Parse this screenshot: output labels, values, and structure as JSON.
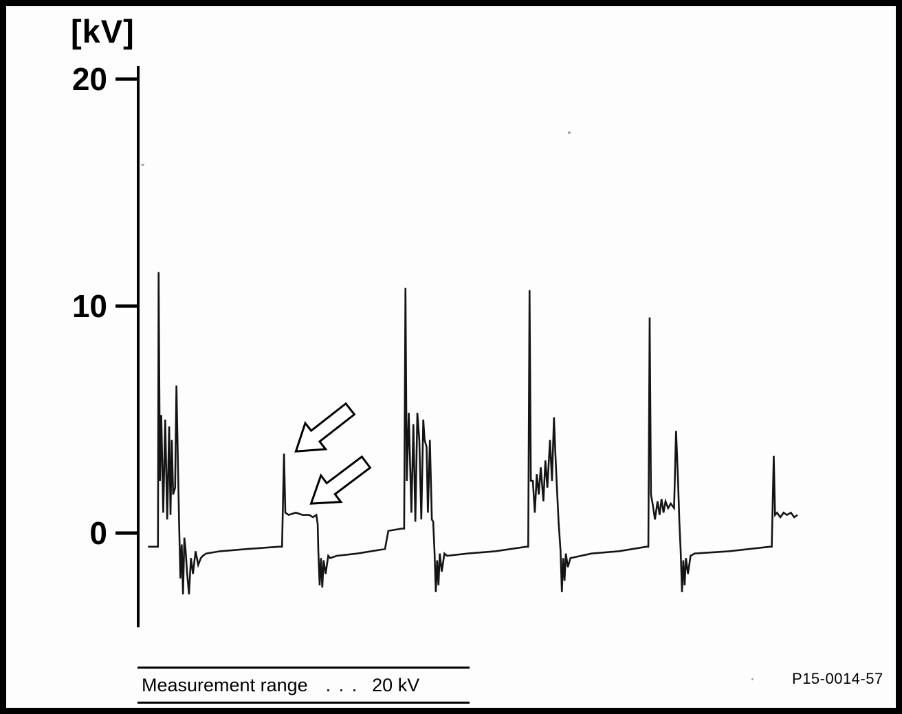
{
  "figure": {
    "unit_label": "[kV]",
    "caption": {
      "label": "Measurement range",
      "separator": ". . .",
      "value": "20 kV"
    },
    "reference_number": "P15-0014-57"
  },
  "chart_data": {
    "type": "line",
    "title": "",
    "xlabel": "",
    "ylabel": "[kV]",
    "x_axis": {
      "visible": false,
      "range": [
        0,
        100
      ]
    },
    "y_axis": {
      "unit_label": "[kV]",
      "ticks": [
        20,
        10,
        0
      ],
      "range": [
        -4,
        21
      ]
    },
    "grid": false,
    "legend": false,
    "series": [
      {
        "name": "secondary-ignition-voltage-trace",
        "color": "#141414",
        "points": [
          [
            1.6,
            -0.6
          ],
          [
            2.9,
            -0.6
          ],
          [
            3.1,
            -0.6
          ],
          [
            3.2,
            11.5
          ],
          [
            3.4,
            2.3
          ],
          [
            3.6,
            5.2
          ],
          [
            3.9,
            0.9
          ],
          [
            4.2,
            5.0
          ],
          [
            4.5,
            0.6
          ],
          [
            4.8,
            4.7
          ],
          [
            5.0,
            0.8
          ],
          [
            5.2,
            4.1
          ],
          [
            5.4,
            1.7
          ],
          [
            5.7,
            2.0
          ],
          [
            5.9,
            6.5
          ],
          [
            6.3,
            0.5
          ],
          [
            6.5,
            -2.0
          ],
          [
            6.7,
            -0.5
          ],
          [
            6.9,
            -2.7
          ],
          [
            7.1,
            -0.2
          ],
          [
            7.3,
            -0.8
          ],
          [
            7.5,
            -1.7
          ],
          [
            7.8,
            -2.7
          ],
          [
            8.1,
            -1.1
          ],
          [
            8.4,
            -1.8
          ],
          [
            8.8,
            -0.8
          ],
          [
            9.2,
            -1.4
          ],
          [
            9.6,
            -1.1
          ],
          [
            9.9,
            -1.0
          ],
          [
            10.4,
            -0.9
          ],
          [
            12.5,
            -0.8
          ],
          [
            16.7,
            -0.7
          ],
          [
            21.4,
            -0.6
          ],
          [
            21.9,
            -0.6
          ],
          [
            22.2,
            3.5
          ],
          [
            22.4,
            0.9
          ],
          [
            22.9,
            0.8
          ],
          [
            24.0,
            0.9
          ],
          [
            25.0,
            0.8
          ],
          [
            26.0,
            0.8
          ],
          [
            26.6,
            0.7
          ],
          [
            27.1,
            0.8
          ],
          [
            27.3,
            0.4
          ],
          [
            27.4,
            -0.8
          ],
          [
            27.6,
            -2.3
          ],
          [
            27.8,
            -1.1
          ],
          [
            28.0,
            -2.4
          ],
          [
            28.2,
            -1.2
          ],
          [
            28.5,
            -1.8
          ],
          [
            28.9,
            -1.0
          ],
          [
            29.2,
            -1.1
          ],
          [
            30.2,
            -1.0
          ],
          [
            33.3,
            -0.9
          ],
          [
            37.5,
            -0.7
          ],
          [
            38.0,
            0.1
          ],
          [
            40.1,
            0.2
          ],
          [
            40.4,
            0.2
          ],
          [
            40.6,
            10.8
          ],
          [
            40.8,
            2.3
          ],
          [
            41.1,
            5.3
          ],
          [
            41.5,
            0.9
          ],
          [
            41.8,
            4.8
          ],
          [
            42.1,
            0.5
          ],
          [
            42.4,
            5.3
          ],
          [
            42.7,
            4.1
          ],
          [
            43.0,
            0.6
          ],
          [
            43.3,
            5.0
          ],
          [
            43.5,
            4.1
          ],
          [
            43.8,
            3.8
          ],
          [
            44.0,
            0.9
          ],
          [
            44.3,
            4.1
          ],
          [
            44.6,
            0.6
          ],
          [
            44.8,
            0.5
          ],
          [
            45.0,
            -0.8
          ],
          [
            45.2,
            -2.6
          ],
          [
            45.4,
            -1.2
          ],
          [
            45.6,
            -2.3
          ],
          [
            45.8,
            -0.9
          ],
          [
            46.1,
            -1.7
          ],
          [
            46.5,
            -0.9
          ],
          [
            46.9,
            -1.0
          ],
          [
            50.0,
            -0.9
          ],
          [
            54.2,
            -0.8
          ],
          [
            58.9,
            -0.6
          ],
          [
            59.2,
            -0.6
          ],
          [
            59.4,
            10.7
          ],
          [
            59.6,
            2.3
          ],
          [
            59.9,
            2.3
          ],
          [
            60.2,
            0.9
          ],
          [
            60.5,
            2.6
          ],
          [
            60.8,
            1.7
          ],
          [
            61.1,
            2.9
          ],
          [
            61.5,
            1.4
          ],
          [
            61.8,
            3.2
          ],
          [
            62.1,
            2.0
          ],
          [
            62.5,
            4.1
          ],
          [
            62.8,
            2.3
          ],
          [
            63.1,
            5.1
          ],
          [
            63.3,
            3.6
          ],
          [
            63.5,
            2.3
          ],
          [
            63.8,
            0.5
          ],
          [
            64.1,
            -0.8
          ],
          [
            64.3,
            -2.6
          ],
          [
            64.5,
            -1.1
          ],
          [
            64.7,
            -2.1
          ],
          [
            64.9,
            -0.9
          ],
          [
            65.2,
            -1.5
          ],
          [
            65.6,
            -1.1
          ],
          [
            68.8,
            -0.9
          ],
          [
            72.9,
            -0.8
          ],
          [
            77.1,
            -0.6
          ],
          [
            77.4,
            -0.6
          ],
          [
            77.6,
            9.5
          ],
          [
            77.8,
            1.7
          ],
          [
            78.1,
            1.2
          ],
          [
            78.4,
            0.6
          ],
          [
            78.8,
            1.4
          ],
          [
            79.1,
            0.8
          ],
          [
            79.4,
            1.5
          ],
          [
            79.7,
            0.9
          ],
          [
            80.0,
            1.4
          ],
          [
            80.4,
            1.1
          ],
          [
            80.8,
            1.3
          ],
          [
            81.3,
            1.1
          ],
          [
            81.6,
            4.5
          ],
          [
            81.9,
            2.3
          ],
          [
            82.1,
            0.5
          ],
          [
            82.3,
            -0.8
          ],
          [
            82.5,
            -2.6
          ],
          [
            82.7,
            -1.2
          ],
          [
            82.9,
            -2.3
          ],
          [
            83.1,
            -1.1
          ],
          [
            83.4,
            -1.8
          ],
          [
            83.8,
            -1.0
          ],
          [
            84.4,
            -0.9
          ],
          [
            89.6,
            -0.8
          ],
          [
            95.8,
            -0.6
          ],
          [
            96.1,
            -0.6
          ],
          [
            96.4,
            3.4
          ],
          [
            96.6,
            0.8
          ],
          [
            96.9,
            0.9
          ],
          [
            97.4,
            0.7
          ],
          [
            97.9,
            0.9
          ],
          [
            98.4,
            0.8
          ],
          [
            99.0,
            0.9
          ],
          [
            99.5,
            0.7
          ],
          [
            100.0,
            0.8
          ]
        ]
      }
    ],
    "annotations": [
      {
        "type": "arrow",
        "name": "arrow-to-reduced-ignition-spike",
        "x": 24.0,
        "y": 3.6,
        "angle_deg": -38
      },
      {
        "type": "arrow",
        "name": "arrow-to-spark-burn-line",
        "x": 26.3,
        "y": 1.3,
        "angle_deg": -37
      }
    ]
  }
}
